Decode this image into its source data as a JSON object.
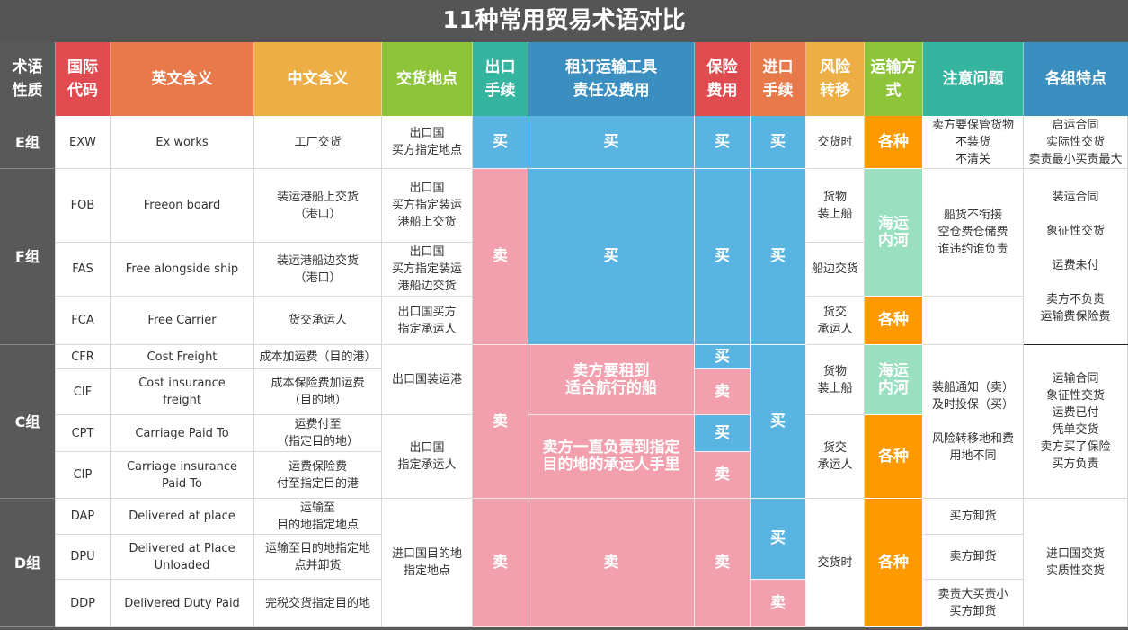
{
  "title": "11种常用贸易术语对比",
  "headers": [
    "术语\n性质",
    "国际\n代码",
    "英文含义",
    "中文含义",
    "交货地点",
    "出口\n手续",
    "租订运输工具\n责任及费用",
    "保险\n费用",
    "进口\n手续",
    "风险\n转移",
    "运输方\n式",
    "注意问题",
    "各组特点"
  ],
  "header_colors": [
    "#595959",
    "#e04b4f",
    "#e8794a",
    "#ecae45",
    "#8dc43a",
    "#35b49f",
    "#3a8fc0",
    "#e04b4f",
    "#e8794a",
    "#ecae45",
    "#8dc43a",
    "#35b49f",
    "#3a8fc0"
  ],
  "colors": {
    "buyer_blue": "#5ab4e2",
    "seller_pink": "#f2a0ad",
    "various_orange": "#ff9900",
    "sea_green": "#99dfc0"
  },
  "groups": [
    "E组",
    "F组",
    "C组",
    "D组"
  ],
  "codes": [
    "EXW",
    "FOB",
    "FAS",
    "FCA",
    "CFR",
    "CIF",
    "CPT",
    "CIP",
    "DAP",
    "DPU",
    "DDP"
  ],
  "english": [
    "Ex works",
    "Freeon board",
    "Free alongside ship",
    "Free Carrier",
    "Cost Freight",
    "Cost insurance\nfreight",
    "Carriage Paid To",
    "Carriage insurance\nPaid To",
    "Delivered at place",
    "Delivered at Place\nUnloaded",
    "Delivered Duty Paid"
  ],
  "chinese": [
    "工厂交货",
    "装运港船上交货\n（港口）",
    "装运港船边交货\n（港口）",
    "货交承运人",
    "成本加运费（目的港）",
    "成本保险费加运费\n（目的地）",
    "运费付至\n（指定目的地）",
    "运费保险费\n付至指定目的港",
    "运输至\n目的地指定地点",
    "运输至目的地指定地\n点并卸货",
    "完税交货指定目的地"
  ],
  "delivery_place": [
    "出口国\n买方指定地点",
    "出口国\n买方指定装运\n港船上交货",
    "出口国\n买方指定装运\n港船边交货",
    "出口国买方\n指定承运人",
    "出口国装运港",
    "出口国\n指定承运人",
    "进口国目的地\n指定地点"
  ],
  "export": [
    "买",
    "卖",
    "卖",
    "卖"
  ],
  "transport": [
    "买",
    "买",
    "卖方要租到\n适合航行的船",
    "卖方一直负责到指定\n目的地的承运人手里",
    "卖"
  ],
  "insurance": [
    "买",
    "买",
    "买",
    "卖",
    "买",
    "卖",
    "卖"
  ],
  "import": [
    "买",
    "买",
    "买",
    "买",
    "卖"
  ],
  "risk": [
    "交货时",
    "货物\n装上船",
    "船边交货",
    "货交\n承运人",
    "货物\n装上船",
    "货交\n承运人",
    "交货时"
  ],
  "mode": [
    "各种",
    "海运\n内河",
    "各种",
    "海运\n内河",
    "各种",
    "各种"
  ],
  "notes": [
    "卖方要保管货物\n不装货\n不清关",
    "船货不衔接\n空仓费仓储费\n谁违约谁负责",
    "",
    "装船通知（卖）\n及时投保（买）\n\n风险转移地和费\n用地不同",
    "买方卸货",
    "卖方卸货",
    "卖责大买责小\n买方卸货"
  ],
  "features": [
    "启运合同\n实际性交货\n卖责最小买责最大",
    "装运合同\n\n象征性交货\n\n运费未付\n\n卖方不负责\n运输费保险费",
    "运输合同\n象征性交货\n运费已付\n凭单交货\n卖方买了保险\n买方负责",
    "进口国交货\n实质性交货"
  ]
}
